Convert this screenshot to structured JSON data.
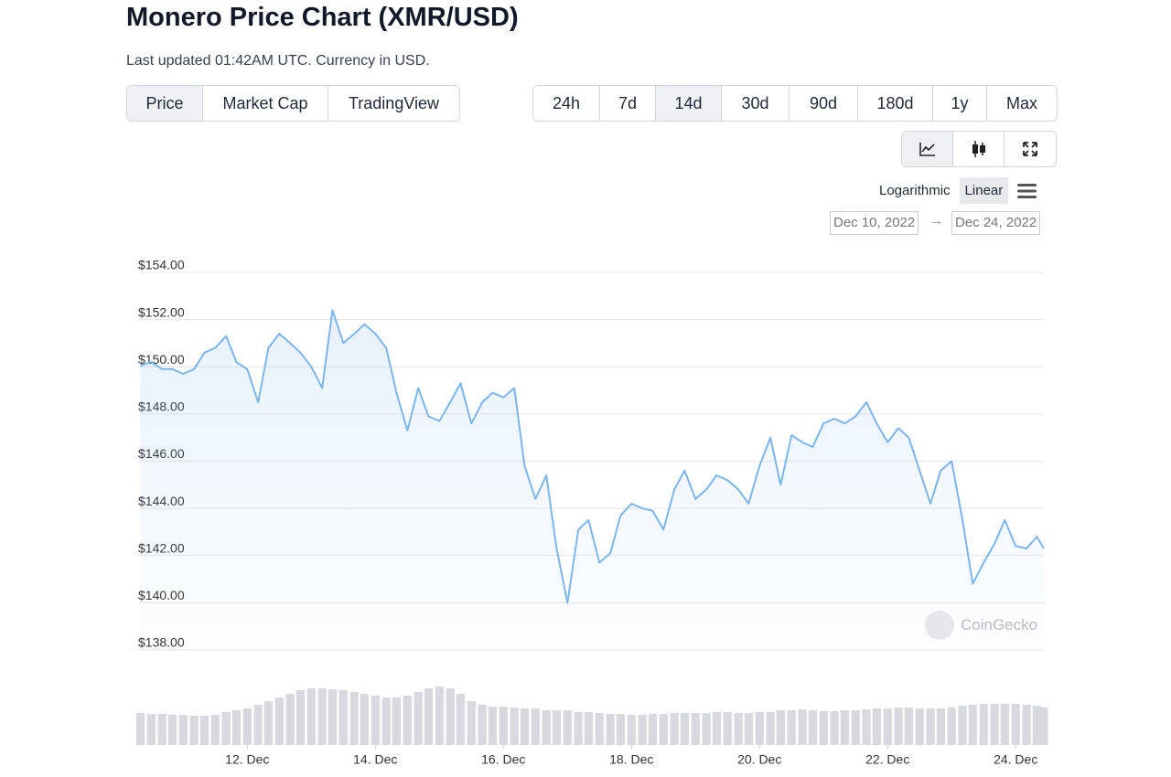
{
  "header": {
    "title": "Monero Price Chart (XMR/USD)",
    "subtitle": "Last updated 01:42AM UTC. Currency in USD."
  },
  "tabs": {
    "items": [
      "Price",
      "Market Cap",
      "TradingView"
    ],
    "active": 0
  },
  "ranges": {
    "items": [
      "24h",
      "7d",
      "14d",
      "30d",
      "90d",
      "180d",
      "1y",
      "Max"
    ],
    "active": 2
  },
  "scale": {
    "items": [
      "Logarithmic",
      "Linear"
    ],
    "active": 1
  },
  "date_range": {
    "from": "Dec 10, 2022",
    "to": "Dec 24, 2022"
  },
  "watermark": "CoinGecko",
  "chart_data": {
    "type": "line",
    "color": "#7cb5ec",
    "grid": true,
    "x": [
      10.33,
      10.5,
      10.67,
      10.83,
      11,
      11.17,
      11.33,
      11.5,
      11.67,
      11.83,
      12,
      12.17,
      12.33,
      12.5,
      12.67,
      12.83,
      13,
      13.17,
      13.33,
      13.5,
      13.67,
      13.83,
      14,
      14.17,
      14.33,
      14.5,
      14.67,
      14.83,
      15,
      15.17,
      15.33,
      15.5,
      15.67,
      15.83,
      16,
      16.17,
      16.33,
      16.5,
      16.67,
      16.83,
      17,
      17.17,
      17.33,
      17.5,
      17.67,
      17.83,
      18,
      18.17,
      18.33,
      18.5,
      18.67,
      18.83,
      19,
      19.17,
      19.33,
      19.5,
      19.67,
      19.83,
      20,
      20.17,
      20.33,
      20.5,
      20.67,
      20.83,
      21,
      21.17,
      21.33,
      21.5,
      21.67,
      21.83,
      22,
      22.17,
      22.33,
      22.5,
      22.67,
      22.83,
      23,
      23.17,
      23.33,
      23.5,
      23.67,
      23.83,
      24,
      24.17,
      24.33,
      24.44
    ],
    "values": [
      150.05,
      150.2,
      149.9,
      149.9,
      149.7,
      149.9,
      150.6,
      150.8,
      151.3,
      150.2,
      149.9,
      148.5,
      150.8,
      151.4,
      151.0,
      150.6,
      150.0,
      149.1,
      152.4,
      151.0,
      151.4,
      151.8,
      151.4,
      150.8,
      148.9,
      147.3,
      149.1,
      147.9,
      147.7,
      148.5,
      149.3,
      147.6,
      148.5,
      148.9,
      148.7,
      149.1,
      145.8,
      144.4,
      145.4,
      142.3,
      140.0,
      143.1,
      143.5,
      141.7,
      142.1,
      143.7,
      144.2,
      144.0,
      143.9,
      143.1,
      144.8,
      145.6,
      144.4,
      144.8,
      145.4,
      145.2,
      144.8,
      144.2,
      145.8,
      147.0,
      145.0,
      147.1,
      146.8,
      146.6,
      147.6,
      147.8,
      147.6,
      147.9,
      148.5,
      147.6,
      146.8,
      147.4,
      147.0,
      145.6,
      144.2,
      145.6,
      146.0,
      143.5,
      140.8,
      141.7,
      142.5,
      143.5,
      142.4,
      142.3,
      142.8,
      142.3
    ],
    "xlim": [
      10.31,
      24.44
    ],
    "xticks": [
      {
        "value": 12,
        "label": "12. Dec"
      },
      {
        "value": 14,
        "label": "14. Dec"
      },
      {
        "value": 16,
        "label": "16. Dec"
      },
      {
        "value": 18,
        "label": "18. Dec"
      },
      {
        "value": 20,
        "label": "20. Dec"
      },
      {
        "value": 22,
        "label": "22. Dec"
      },
      {
        "value": 24,
        "label": "24. Dec"
      }
    ],
    "ylim": [
      138,
      154
    ],
    "yticks": [
      {
        "value": 138,
        "label": "$138.00"
      },
      {
        "value": 140,
        "label": "$140.00"
      },
      {
        "value": 142,
        "label": "$142.00"
      },
      {
        "value": 144,
        "label": "$144.00"
      },
      {
        "value": 146,
        "label": "$146.00"
      },
      {
        "value": 148,
        "label": "$148.00"
      },
      {
        "value": 150,
        "label": "$150.00"
      },
      {
        "value": 152,
        "label": "$152.00"
      },
      {
        "value": 154,
        "label": "$154.00"
      }
    ],
    "volume": {
      "color": "#d7d9de",
      "lim": [
        0,
        70
      ],
      "values": [
        35,
        34,
        34,
        33,
        33,
        32,
        32,
        33,
        36,
        38,
        40,
        44,
        48,
        52,
        56,
        60,
        62,
        62,
        61,
        60,
        58,
        56,
        54,
        52,
        52,
        54,
        58,
        62,
        64,
        62,
        56,
        48,
        44,
        42,
        42,
        41,
        40,
        40,
        38,
        38,
        38,
        36,
        36,
        35,
        34,
        34,
        33,
        33,
        34,
        34,
        35,
        35,
        35,
        35,
        36,
        36,
        35,
        35,
        36,
        36,
        38,
        38,
        39,
        38,
        37,
        37,
        38,
        38,
        39,
        40,
        40,
        41,
        41,
        40,
        40,
        40,
        41,
        43,
        44,
        45,
        45,
        45,
        45,
        44,
        43,
        41
      ]
    }
  }
}
